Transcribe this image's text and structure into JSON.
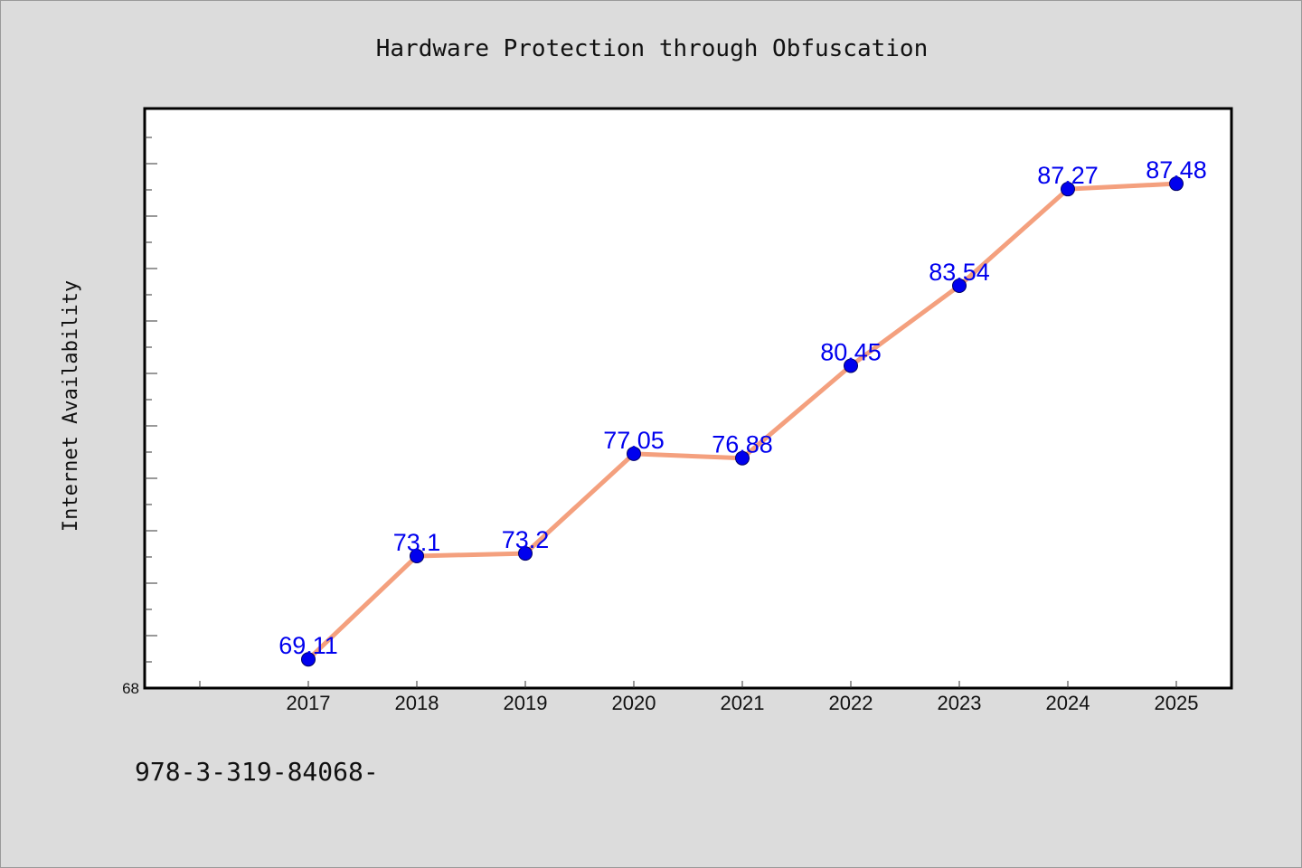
{
  "chart_data": {
    "type": "line",
    "title": "Hardware Protection through Obfuscation",
    "xlabel": "",
    "ylabel": "Internet Availability",
    "categories": [
      "2017",
      "2018",
      "2019",
      "2020",
      "2021",
      "2022",
      "2023",
      "2024",
      "2025"
    ],
    "series": [
      {
        "values": [
          69.11,
          73.1,
          73.2,
          77.05,
          76.88,
          80.45,
          83.54,
          87.27,
          87.48
        ],
        "labels": [
          "69.11",
          "73.1",
          "73.2",
          "77.05",
          "76.88",
          "80.45",
          "83.54",
          "87.27",
          "87.48"
        ],
        "line_color": "#f4a07e",
        "marker_color": "#0000ee"
      }
    ],
    "ylim": [
      68,
      90
    ],
    "y_tick_labels": [
      "68"
    ],
    "grid": false,
    "legend": "none"
  },
  "footer": {
    "text": "978-3-319-84068-"
  }
}
